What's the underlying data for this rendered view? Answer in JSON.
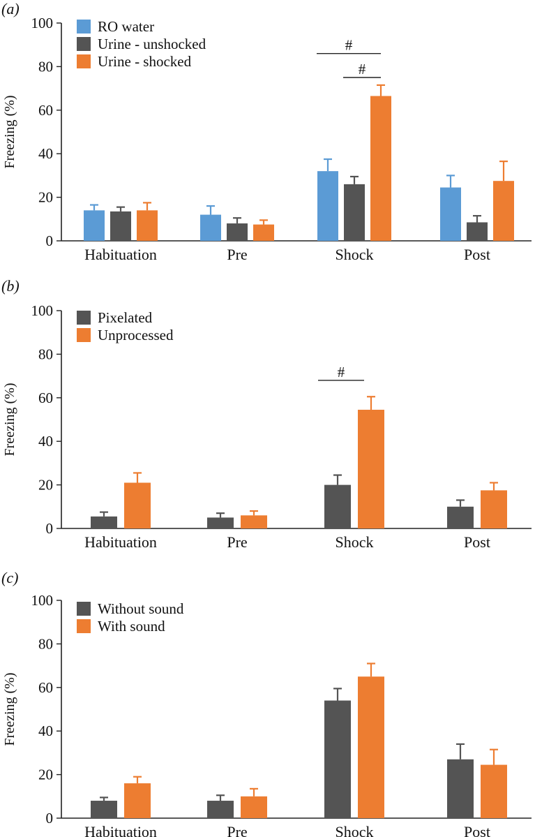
{
  "colors": {
    "RO water": "#5b9bd5",
    "Urine - unshocked": "#545454",
    "Urine - shocked": "#ed7d31",
    "Pixelated": "#545454",
    "Unprocessed": "#ed7d31",
    "Without sound": "#545454",
    "With sound": "#ed7d31"
  },
  "chart_data": [
    {
      "type": "bar",
      "panel": "(a)",
      "ylabel": "Freezing (%)",
      "ylim": [
        0,
        100
      ],
      "yticks": [
        0,
        20,
        40,
        60,
        80,
        100
      ],
      "categories": [
        "Habituation",
        "Pre",
        "Shock",
        "Post"
      ],
      "legend_position": "top-left",
      "series": [
        {
          "name": "RO water",
          "values": [
            14,
            12,
            32,
            24.5
          ],
          "errors": [
            2.5,
            4,
            5.5,
            5.5
          ]
        },
        {
          "name": "Urine - unshocked",
          "values": [
            13.5,
            8,
            26,
            8.5
          ],
          "errors": [
            2,
            2.5,
            3.5,
            3
          ]
        },
        {
          "name": "Urine - shocked",
          "values": [
            14,
            7.5,
            66.5,
            27.5
          ],
          "errors": [
            3.5,
            2,
            5,
            9
          ]
        }
      ],
      "significance": [
        {
          "label": "#",
          "category": "Shock",
          "from_series": 0,
          "to_series": 2,
          "y": 86
        },
        {
          "label": "#",
          "category": "Shock",
          "from_series": 1,
          "to_series": 2,
          "y": 75
        }
      ]
    },
    {
      "type": "bar",
      "panel": "(b)",
      "ylabel": "Freezing (%)",
      "ylim": [
        0,
        100
      ],
      "yticks": [
        0,
        20,
        40,
        60,
        80,
        100
      ],
      "categories": [
        "Habituation",
        "Pre",
        "Shock",
        "Post"
      ],
      "legend_position": "top-left",
      "series": [
        {
          "name": "Pixelated",
          "values": [
            5.5,
            5,
            20,
            10
          ],
          "errors": [
            2,
            2,
            4.5,
            3
          ]
        },
        {
          "name": "Unprocessed",
          "values": [
            21,
            6,
            54.5,
            17.5
          ],
          "errors": [
            4.5,
            2,
            6,
            3.5
          ]
        }
      ],
      "significance": [
        {
          "label": "#",
          "category": "Shock",
          "from_series": 0,
          "to_series": 1,
          "y": 68
        }
      ]
    },
    {
      "type": "bar",
      "panel": "(c)",
      "ylabel": "Freezing (%)",
      "ylim": [
        0,
        100
      ],
      "yticks": [
        0,
        20,
        40,
        60,
        80,
        100
      ],
      "categories": [
        "Habituation",
        "Pre",
        "Shock",
        "Post"
      ],
      "legend_position": "top-left",
      "series": [
        {
          "name": "Without sound",
          "values": [
            8,
            8,
            54,
            27
          ],
          "errors": [
            1.5,
            2.5,
            5.5,
            7
          ]
        },
        {
          "name": "With sound",
          "values": [
            16,
            10,
            65,
            24.5
          ],
          "errors": [
            3,
            3.5,
            6,
            7
          ]
        }
      ],
      "significance": []
    }
  ]
}
